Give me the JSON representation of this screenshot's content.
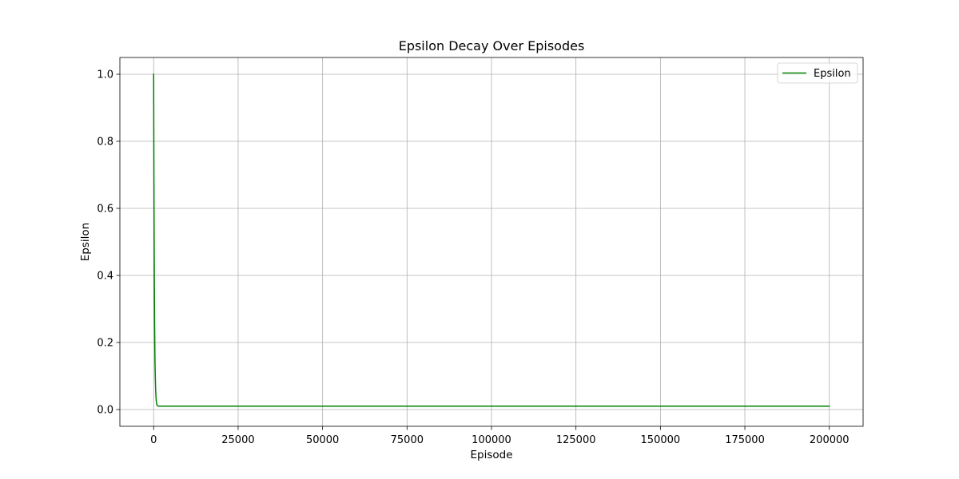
{
  "chart_data": {
    "type": "line",
    "title": "Epsilon Decay Over Episodes",
    "xlabel": "Episode",
    "ylabel": "Epsilon",
    "xlim": [
      -10000,
      210000
    ],
    "ylim": [
      -0.05,
      1.05
    ],
    "x_ticks": [
      0,
      25000,
      50000,
      75000,
      100000,
      125000,
      150000,
      175000,
      200000
    ],
    "y_ticks": [
      0.0,
      0.2,
      0.4,
      0.6,
      0.8,
      1.0
    ],
    "x_tick_labels": [
      "0",
      "25000",
      "50000",
      "75000",
      "100000",
      "125000",
      "150000",
      "175000",
      "200000"
    ],
    "y_tick_labels": [
      "0.0",
      "0.2",
      "0.4",
      "0.6",
      "0.8",
      "1.0"
    ],
    "grid": true,
    "legend_position": "top-right",
    "series": [
      {
        "name": "Epsilon",
        "color": "#008000",
        "points": [
          [
            0,
            1.0
          ],
          [
            100,
            0.61
          ],
          [
            200,
            0.37
          ],
          [
            300,
            0.23
          ],
          [
            400,
            0.14
          ],
          [
            500,
            0.09
          ],
          [
            600,
            0.055
          ],
          [
            700,
            0.035
          ],
          [
            800,
            0.024
          ],
          [
            900,
            0.017
          ],
          [
            1000,
            0.013
          ],
          [
            1200,
            0.011
          ],
          [
            1500,
            0.01
          ],
          [
            200000,
            0.01
          ]
        ]
      }
    ]
  }
}
